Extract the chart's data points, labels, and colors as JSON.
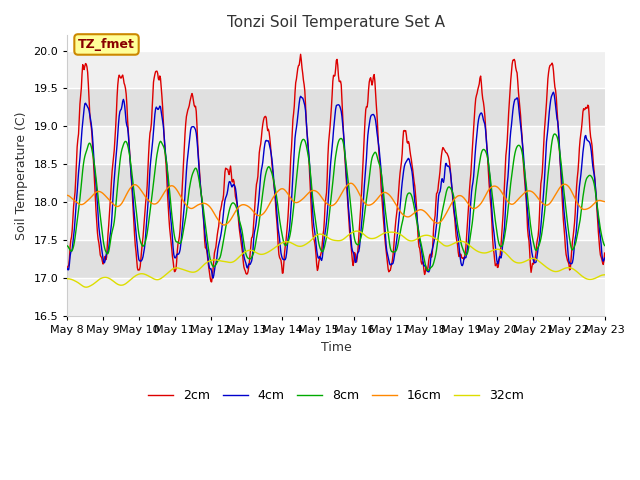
{
  "title": "Tonzi Soil Temperature Set A",
  "xlabel": "Time",
  "ylabel": "Soil Temperature (C)",
  "ylim": [
    16.5,
    20.2
  ],
  "xlim": [
    0,
    360
  ],
  "annotation_text": "TZ_fmet",
  "annotation_color": "#880000",
  "annotation_bg": "#ffff99",
  "annotation_border": "#cc8800",
  "legend_labels": [
    "2cm",
    "4cm",
    "8cm",
    "16cm",
    "32cm"
  ],
  "line_colors": [
    "#dd0000",
    "#0000cc",
    "#00aa00",
    "#ff8800",
    "#dddd00"
  ],
  "x_tick_labels": [
    "May 8",
    "May 9",
    "May 10",
    "May 11",
    "May 12",
    "May 13",
    "May 14",
    "May 15",
    "May 16",
    "May 17",
    "May 18",
    "May 19",
    "May 20",
    "May 21",
    "May 22",
    "May 23"
  ],
  "x_tick_positions": [
    0,
    24,
    48,
    72,
    96,
    120,
    144,
    168,
    192,
    216,
    240,
    264,
    288,
    312,
    336,
    360
  ],
  "fig_bg_color": "#ffffff",
  "plot_bg_color": "#ffffff",
  "band_color_light": "#f0f0f0",
  "band_color_dark": "#e0e0e0",
  "grid_color": "#ffffff",
  "y_ticks": [
    16.5,
    17.0,
    17.5,
    18.0,
    18.5,
    19.0,
    19.5,
    20.0
  ]
}
